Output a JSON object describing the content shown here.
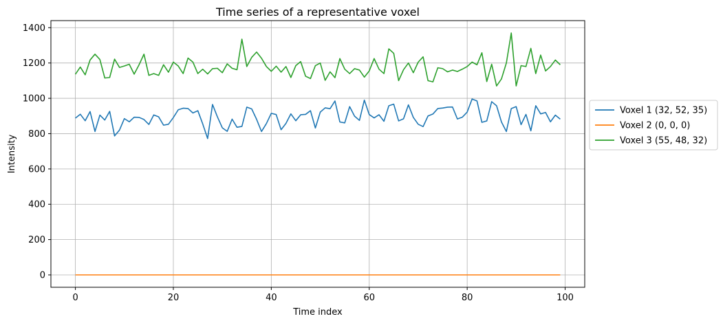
{
  "chart_data": {
    "type": "line",
    "title": "Time series of a representative voxel",
    "xlabel": "Time index",
    "ylabel": "Intensity",
    "xlim": [
      -5,
      104
    ],
    "ylim": [
      -70,
      1440
    ],
    "xticks": [
      0,
      20,
      40,
      60,
      80,
      100
    ],
    "yticks": [
      0,
      200,
      400,
      600,
      800,
      1000,
      1200,
      1400
    ],
    "grid": true,
    "legend_position": "center-right-outside",
    "series": [
      {
        "name": "Voxel 1 (32, 52, 35)",
        "color": "#1f77b4",
        "values": [
          888,
          910,
          873,
          925,
          812,
          905,
          877,
          926,
          787,
          820,
          885,
          867,
          893,
          892,
          880,
          852,
          906,
          895,
          848,
          853,
          891,
          935,
          944,
          942,
          917,
          930,
          855,
          772,
          965,
          895,
          833,
          813,
          882,
          836,
          841,
          950,
          940,
          881,
          812,
          857,
          915,
          908,
          822,
          858,
          912,
          873,
          907,
          909,
          930,
          832,
          922,
          946,
          941,
          985,
          866,
          861,
          953,
          899,
          875,
          990,
          908,
          889,
          907,
          870,
          958,
          967,
          872,
          884,
          963,
          892,
          853,
          840,
          900,
          911,
          942,
          945,
          950,
          951,
          883,
          893,
          922,
          996,
          985,
          864,
          872,
          981,
          958,
          866,
          812,
          942,
          953,
          851,
          909,
          816,
          958,
          912,
          920,
          867,
          905,
          882
        ]
      },
      {
        "name": "Voxel 2 (0, 0, 0)",
        "color": "#ff7f0e",
        "values": [
          0,
          0,
          0,
          0,
          0,
          0,
          0,
          0,
          0,
          0,
          0,
          0,
          0,
          0,
          0,
          0,
          0,
          0,
          0,
          0,
          0,
          0,
          0,
          0,
          0,
          0,
          0,
          0,
          0,
          0,
          0,
          0,
          0,
          0,
          0,
          0,
          0,
          0,
          0,
          0,
          0,
          0,
          0,
          0,
          0,
          0,
          0,
          0,
          0,
          0,
          0,
          0,
          0,
          0,
          0,
          0,
          0,
          0,
          0,
          0,
          0,
          0,
          0,
          0,
          0,
          0,
          0,
          0,
          0,
          0,
          0,
          0,
          0,
          0,
          0,
          0,
          0,
          0,
          0,
          0,
          0,
          0,
          0,
          0,
          0,
          0,
          0,
          0,
          0,
          0,
          0,
          0,
          0,
          0,
          0,
          0,
          0,
          0,
          0,
          0
        ]
      },
      {
        "name": "Voxel 3 (55, 48, 32)",
        "color": "#2ca02c",
        "values": [
          1136,
          1177,
          1133,
          1217,
          1250,
          1220,
          1115,
          1118,
          1222,
          1175,
          1183,
          1193,
          1137,
          1190,
          1250,
          1130,
          1140,
          1130,
          1190,
          1148,
          1205,
          1183,
          1140,
          1228,
          1205,
          1140,
          1165,
          1138,
          1168,
          1170,
          1145,
          1195,
          1170,
          1162,
          1335,
          1180,
          1232,
          1262,
          1227,
          1180,
          1153,
          1182,
          1148,
          1180,
          1118,
          1185,
          1208,
          1125,
          1112,
          1185,
          1200,
          1102,
          1150,
          1117,
          1225,
          1165,
          1140,
          1168,
          1160,
          1120,
          1155,
          1225,
          1165,
          1140,
          1280,
          1255,
          1100,
          1162,
          1200,
          1145,
          1205,
          1235,
          1100,
          1093,
          1173,
          1168,
          1150,
          1160,
          1152,
          1165,
          1180,
          1205,
          1190,
          1258,
          1095,
          1193,
          1070,
          1110,
          1200,
          1370,
          1070,
          1185,
          1180,
          1283,
          1140,
          1245,
          1155,
          1180,
          1217,
          1190
        ]
      }
    ]
  }
}
